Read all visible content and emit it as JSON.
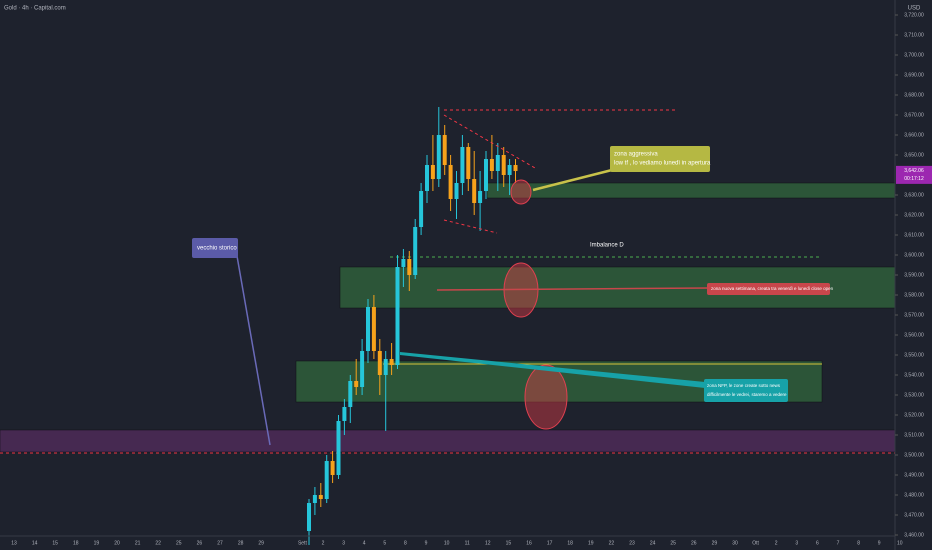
{
  "chart_data": {
    "type": "candlestick",
    "title": "Gold · 4h · Capital.com",
    "currency": "USD",
    "categories": [
      "13",
      "14",
      "15",
      "18",
      "19",
      "20",
      "21",
      "22",
      "25",
      "26",
      "27",
      "28",
      "29",
      null,
      "Sett",
      "2",
      "3",
      "4",
      "5",
      "8",
      "9",
      "10",
      "11",
      "12",
      "15",
      "16",
      "17",
      "18",
      "19",
      "22",
      "23",
      "24",
      "25",
      "26",
      "29",
      "30",
      "Ott",
      "2",
      "3",
      "6",
      "7",
      "8",
      "9",
      "10"
    ],
    "ylim": [
      3452.5,
      3727.5
    ],
    "yticks": [
      {
        "value": 3460,
        "label": "3,460.00"
      },
      {
        "value": 3470,
        "label": "3,470.00"
      },
      {
        "value": 3480,
        "label": "3,480.00"
      },
      {
        "value": 3490,
        "label": "3,490.00"
      },
      {
        "value": 3500,
        "label": "3,500.00"
      },
      {
        "value": 3510,
        "label": "3,510.00"
      },
      {
        "value": 3520,
        "label": "3,520.00"
      },
      {
        "value": 3530,
        "label": "3,530.00"
      },
      {
        "value": 3540,
        "label": "3,540.00"
      },
      {
        "value": 3550,
        "label": "3,550.00"
      },
      {
        "value": 3560,
        "label": "3,560.00"
      },
      {
        "value": 3570,
        "label": "3,570.00"
      },
      {
        "value": 3580,
        "label": "3,580.00"
      },
      {
        "value": 3590,
        "label": "3,590.00"
      },
      {
        "value": 3600,
        "label": "3,600.00"
      },
      {
        "value": 3610,
        "label": "3,610.00"
      },
      {
        "value": 3620,
        "label": "3,620.00"
      },
      {
        "value": 3630,
        "label": "3,630.00"
      },
      {
        "value": 3650,
        "label": "3,650.00"
      },
      {
        "value": 3660,
        "label": "3,660.00"
      },
      {
        "value": 3670,
        "label": "3,670.00"
      },
      {
        "value": 3680,
        "label": "3,680.00"
      },
      {
        "value": 3690,
        "label": "3,690.00"
      },
      {
        "value": 3700,
        "label": "3,700.00"
      },
      {
        "value": 3710,
        "label": "3,710.00"
      },
      {
        "value": 3720,
        "label": "3,720.00"
      }
    ],
    "up_color": "#26c6da",
    "down_color": "#f7a21b",
    "candles": [
      {
        "open": 3462,
        "high": 3478,
        "low": 3455,
        "close": 3476
      },
      {
        "open": 3476,
        "high": 3484,
        "low": 3470,
        "close": 3480
      },
      {
        "open": 3480,
        "high": 3486,
        "low": 3474,
        "close": 3478
      },
      {
        "open": 3478,
        "high": 3500,
        "low": 3476,
        "close": 3497
      },
      {
        "open": 3497,
        "high": 3502,
        "low": 3486,
        "close": 3490
      },
      {
        "open": 3490,
        "high": 3520,
        "low": 3488,
        "close": 3517
      },
      {
        "open": 3517,
        "high": 3528,
        "low": 3510,
        "close": 3524
      },
      {
        "open": 3524,
        "high": 3540,
        "low": 3516,
        "close": 3537
      },
      {
        "open": 3537,
        "high": 3548,
        "low": 3530,
        "close": 3534
      },
      {
        "open": 3534,
        "high": 3558,
        "low": 3530,
        "close": 3552
      },
      {
        "open": 3552,
        "high": 3578,
        "low": 3546,
        "close": 3574
      },
      {
        "open": 3574,
        "high": 3580,
        "low": 3548,
        "close": 3552
      },
      {
        "open": 3552,
        "high": 3558,
        "low": 3530,
        "close": 3540
      },
      {
        "open": 3540,
        "high": 3552,
        "low": 3512,
        "close": 3548
      },
      {
        "open": 3548,
        "high": 3556,
        "low": 3540,
        "close": 3545
      },
      {
        "open": 3545,
        "high": 3600,
        "low": 3543,
        "close": 3594
      },
      {
        "open": 3594,
        "high": 3603,
        "low": 3584,
        "close": 3598
      },
      {
        "open": 3598,
        "high": 3602,
        "low": 3582,
        "close": 3590
      },
      {
        "open": 3590,
        "high": 3618,
        "low": 3588,
        "close": 3614
      },
      {
        "open": 3614,
        "high": 3636,
        "low": 3610,
        "close": 3632
      },
      {
        "open": 3632,
        "high": 3650,
        "low": 3626,
        "close": 3645
      },
      {
        "open": 3645,
        "high": 3660,
        "low": 3632,
        "close": 3638
      },
      {
        "open": 3638,
        "high": 3674,
        "low": 3634,
        "close": 3660
      },
      {
        "open": 3660,
        "high": 3665,
        "low": 3640,
        "close": 3645
      },
      {
        "open": 3645,
        "high": 3650,
        "low": 3622,
        "close": 3628
      },
      {
        "open": 3628,
        "high": 3642,
        "low": 3618,
        "close": 3636
      },
      {
        "open": 3636,
        "high": 3660,
        "low": 3630,
        "close": 3654
      },
      {
        "open": 3654,
        "high": 3656,
        "low": 3632,
        "close": 3638
      },
      {
        "open": 3638,
        "high": 3652,
        "low": 3620,
        "close": 3626
      },
      {
        "open": 3626,
        "high": 3642,
        "low": 3612,
        "close": 3632
      },
      {
        "open": 3632,
        "high": 3652,
        "low": 3628,
        "close": 3648
      },
      {
        "open": 3648,
        "high": 3660,
        "low": 3638,
        "close": 3642
      },
      {
        "open": 3642,
        "high": 3656,
        "low": 3632,
        "close": 3650
      },
      {
        "open": 3650,
        "high": 3654,
        "low": 3634,
        "close": 3640
      },
      {
        "open": 3640,
        "high": 3648,
        "low": 3630,
        "close": 3645
      },
      {
        "open": 3645,
        "high": 3648,
        "low": 3636,
        "close": 3642
      }
    ],
    "last_price": {
      "value": 3642.06,
      "label": "3,642.06",
      "countdown": "00:17:12"
    },
    "zones": [
      {
        "low": 3628.5,
        "high": 3636,
        "color": "#2e5b3a"
      },
      {
        "low": 3573.5,
        "high": 3594,
        "color": "#2e5b3a"
      },
      {
        "low": 3526.5,
        "high": 3547,
        "color": "#2e5b3a"
      },
      {
        "low": 3501.5,
        "high": 3512.5,
        "color": "#4a2a55"
      }
    ],
    "levels": [
      {
        "price": 3672.5,
        "color": "#f23645"
      },
      {
        "price": 3599,
        "color": "#4caf50"
      },
      {
        "price": 3545.5,
        "color": "#d6c43a"
      },
      {
        "price": 3501,
        "color": "#f23645"
      }
    ],
    "annotations": {
      "aggressive": [
        "zona aggressiva",
        "low tf , lo vediamo lunedì in apertura"
      ],
      "old": "vecchio storico",
      "imbalance": "Imbalance D",
      "new_week": "zona nuova settimana, creata tra venerdì e lunedì close open",
      "nfp": [
        "zona NFP, le zone create sotto news",
        "difficilmente le vedrei, staremo a vedere"
      ]
    }
  }
}
